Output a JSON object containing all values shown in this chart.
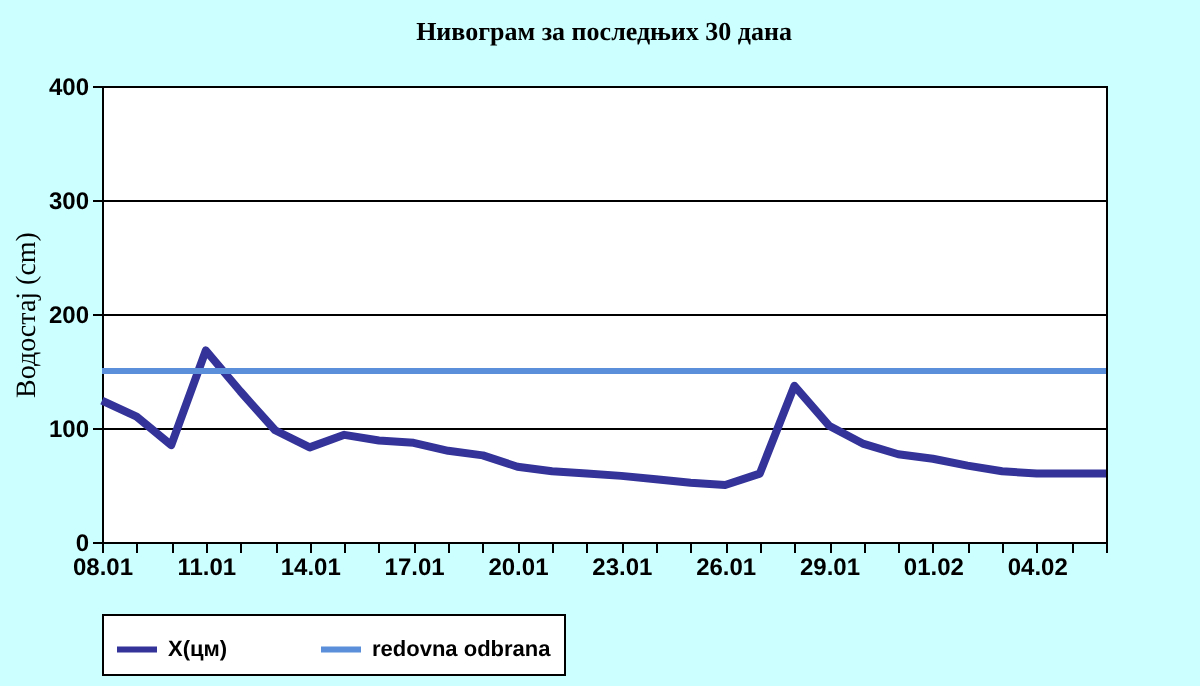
{
  "chart_data": {
    "type": "line",
    "title": "Нивограм за последњих 30 дана",
    "ylabel": "Водостај (cm)",
    "categories": [
      "08.01",
      null,
      null,
      "11.01",
      null,
      null,
      "14.01",
      null,
      null,
      "17.01",
      null,
      null,
      "20.01",
      null,
      null,
      "23.01",
      null,
      null,
      "26.01",
      null,
      null,
      "29.01",
      null,
      null,
      "01.02",
      null,
      null,
      "04.02",
      null,
      null
    ],
    "series": [
      {
        "name": "X(цм)",
        "color": "#333399",
        "values": [
          124,
          110,
          85,
          168,
          132,
          98,
          83,
          94,
          89,
          87,
          80,
          76,
          66,
          62,
          60,
          58,
          55,
          52,
          50,
          60,
          137,
          102,
          86,
          77,
          73,
          67,
          62,
          60,
          60,
          60
        ]
      }
    ],
    "ref_lines": [
      {
        "axis": "y",
        "value": 150,
        "label": "redovna odbrana",
        "color": "#5b8fd9"
      }
    ],
    "ylim": [
      0,
      400
    ],
    "yticks": [
      0,
      100,
      200,
      300,
      400
    ],
    "grid": "y",
    "legend": "bottom",
    "line_style": "solid",
    "marker": "none"
  }
}
